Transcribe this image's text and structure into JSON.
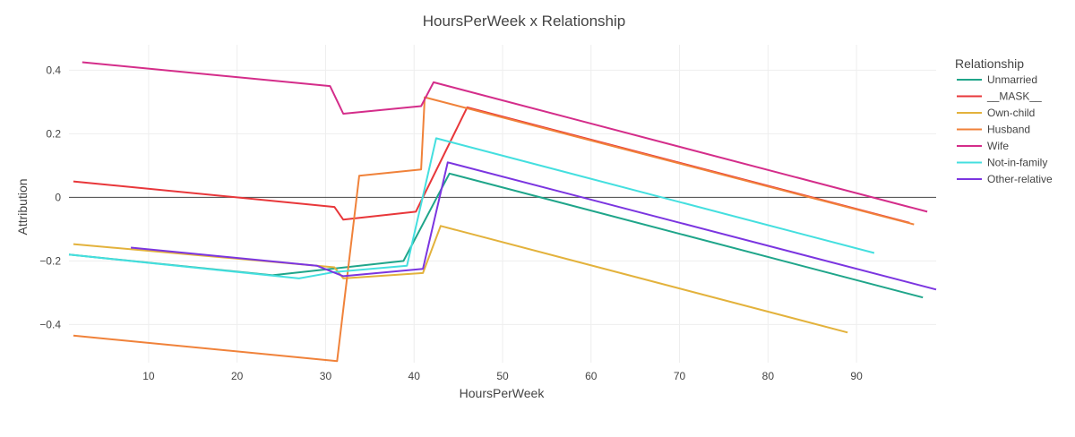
{
  "chart_data": {
    "type": "line",
    "title": "HoursPerWeek x Relationship",
    "xlabel": "HoursPerWeek",
    "ylabel": "Attribution",
    "xlim": [
      1,
      99
    ],
    "ylim": [
      -0.52,
      0.48
    ],
    "xticks": [
      10,
      20,
      30,
      40,
      50,
      60,
      70,
      80,
      90
    ],
    "yticks": [
      -0.4,
      -0.2,
      0,
      0.2,
      0.4
    ],
    "ytick_labels": [
      "−0.4",
      "−0.2",
      "0",
      "0.2",
      "0.4"
    ],
    "grid": true,
    "zero_line": true,
    "legend_title": "Relationship",
    "legend_position": "top-right",
    "series": [
      {
        "name": "Unmarried",
        "color": "#1fa58a",
        "x": [
          1,
          24,
          38.8,
          44,
          97.5
        ],
        "y": [
          -0.18,
          -0.245,
          -0.2,
          0.075,
          -0.315
        ]
      },
      {
        "name": "__MASK__",
        "color": "#e8373a",
        "x": [
          1.5,
          31,
          32,
          40.2,
          46,
          96
        ],
        "y": [
          0.05,
          -0.03,
          -0.07,
          -0.045,
          0.283,
          -0.08
        ]
      },
      {
        "name": "Own-child",
        "color": "#e3b23c",
        "x": [
          1.5,
          31,
          32,
          41,
          43,
          89
        ],
        "y": [
          -0.147,
          -0.22,
          -0.255,
          -0.238,
          -0.09,
          -0.425
        ]
      },
      {
        "name": "Husband",
        "color": "#f0823a",
        "x": [
          1.5,
          31.3,
          33.8,
          40.8,
          41.2,
          96.5
        ],
        "y": [
          -0.435,
          -0.515,
          0.068,
          0.088,
          0.315,
          -0.085
        ]
      },
      {
        "name": "Wife",
        "color": "#d42d8a",
        "x": [
          2.5,
          30.5,
          32,
          40.8,
          42.2,
          98
        ],
        "y": [
          0.425,
          0.35,
          0.263,
          0.287,
          0.362,
          -0.045
        ]
      },
      {
        "name": "Not-in-family",
        "color": "#44dfdf",
        "x": [
          1,
          27,
          31,
          39.2,
          42.5,
          92
        ],
        "y": [
          -0.18,
          -0.255,
          -0.235,
          -0.215,
          0.186,
          -0.175
        ]
      },
      {
        "name": "Other-relative",
        "color": "#7b35e0",
        "x": [
          8,
          29,
          32,
          41,
          43.8,
          99
        ],
        "y": [
          -0.158,
          -0.215,
          -0.248,
          -0.225,
          0.11,
          -0.29
        ]
      }
    ]
  }
}
